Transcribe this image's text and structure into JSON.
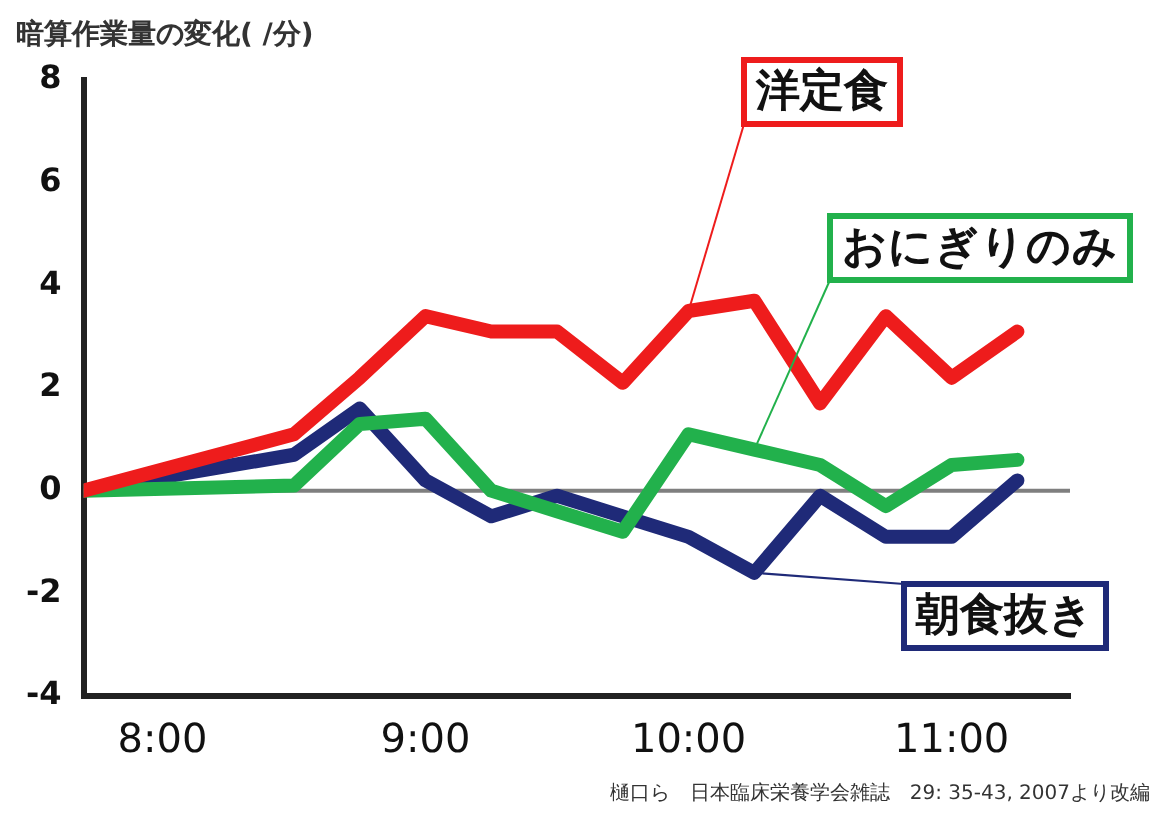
{
  "chart_data": {
    "type": "line",
    "ylabel": "暗算作業量の変化( /分)",
    "annotations": [
      "樋口ら　日本臨床栄養学会雑誌　29: 35-43, 2007より改編"
    ],
    "x": [
      7.7,
      8.5,
      8.75,
      9.0,
      9.25,
      9.5,
      9.75,
      10.0,
      10.25,
      10.5,
      10.75,
      11.0,
      11.25
    ],
    "series": [
      {
        "name": "洋定食",
        "color": "#ee1c1c",
        "values": [
          0,
          1.1,
          2.2,
          3.4,
          3.1,
          3.1,
          2.1,
          3.5,
          3.7,
          1.7,
          3.4,
          2.2,
          3.1
        ]
      },
      {
        "name": "おにぎりのみ",
        "color": "#22b14c",
        "values": [
          0,
          0.1,
          1.3,
          1.4,
          0,
          -0.4,
          -0.8,
          1.1,
          0.8,
          0.5,
          -0.3,
          0.5,
          0.6
        ]
      },
      {
        "name": "朝食抜き",
        "color": "#1f2a78",
        "values": [
          0,
          0.7,
          1.6,
          0.2,
          -0.5,
          -0.1,
          -0.5,
          -0.9,
          -1.6,
          -0.1,
          -0.9,
          -0.9,
          0.2
        ]
      }
    ],
    "xlim": [
      7.7,
      11.45
    ],
    "xticks": [
      {
        "value": 8,
        "label": "8:00"
      },
      {
        "value": 9,
        "label": "9:00"
      },
      {
        "value": 10,
        "label": "10:00"
      },
      {
        "value": 11,
        "label": "11:00"
      }
    ],
    "ylim": [
      -4,
      8
    ],
    "yticks": [
      -4,
      -2,
      0,
      2,
      4,
      6,
      8
    ],
    "ref_lines": [
      {
        "axis": "y",
        "value": 0,
        "color": "#7f7f7f"
      }
    ],
    "grid": false,
    "legend": false,
    "marker": "none",
    "line_style": "solid"
  }
}
